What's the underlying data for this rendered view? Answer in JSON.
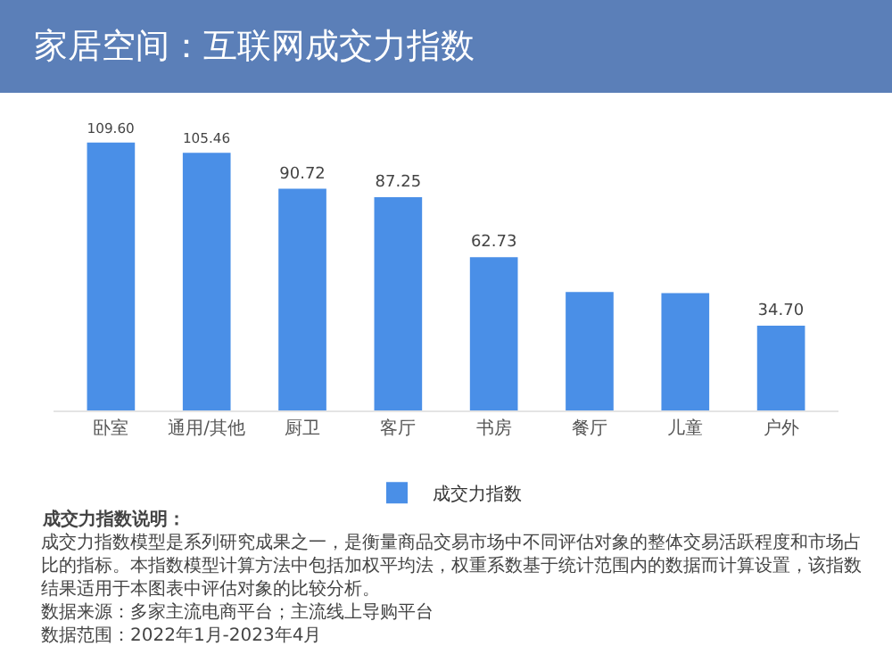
{
  "chart_data": {
    "type": "bar",
    "title": "家居空间：互联网成交力指数",
    "categories": [
      "卧室",
      "通用/其他",
      "厨卫",
      "客厅",
      "书房",
      "餐厅",
      "儿童",
      "户外"
    ],
    "series": [
      {
        "name": "成交力指数",
        "color": "#4a8fe7",
        "values": [
          109.6,
          105.46,
          90.72,
          87.25,
          62.73,
          48.5,
          48.0,
          34.7
        ],
        "value_labels": [
          "109.60",
          "105.46",
          "90.72",
          "87.25",
          "62.73",
          null,
          null,
          "34.70"
        ]
      }
    ],
    "tick_labels": "x",
    "legend": "bottom",
    "annotations": [
      "成交力指数说明：",
      "成交力指数模型是系列研究成果之一，是衡量商品交易市场中不同评估对象的整体交易活跃程度和市场占比的指标。本指数模型计算方法中包括加权平均法，权重系数基于统计范围内的数据而计算设置，该指数结果适用于本图表中评估对象的比较分析。",
      "数据来源：多家主流电商平台；主流线上导购平台",
      "数据范围：2022年1月-2023年4月"
    ]
  }
}
